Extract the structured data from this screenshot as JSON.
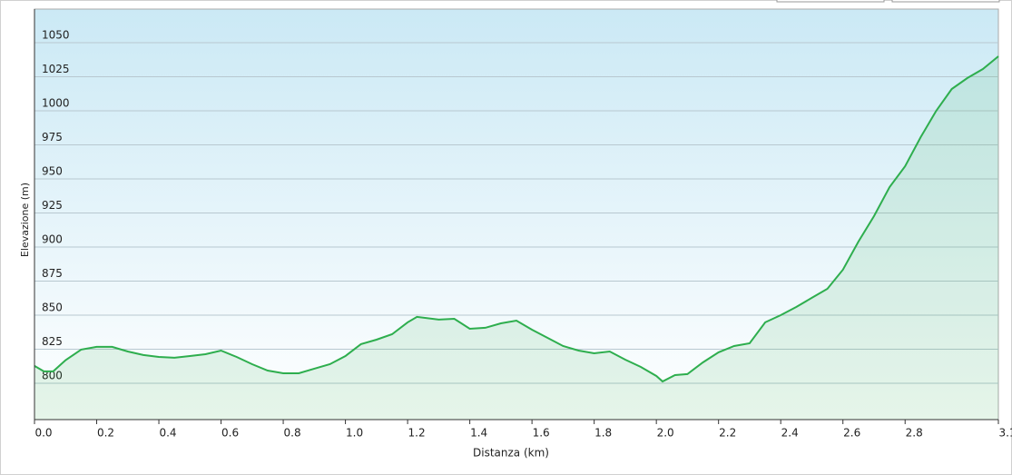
{
  "chart_data": {
    "type": "area",
    "x_label": "Distanza (km)",
    "y_label": "Elevazione (m)",
    "x": [
      0,
      0.03,
      0.06,
      0.1,
      0.15,
      0.2,
      0.25,
      0.3,
      0.35,
      0.4,
      0.45,
      0.5,
      0.55,
      0.6,
      0.65,
      0.7,
      0.75,
      0.8,
      0.85,
      0.9,
      0.95,
      1.0,
      1.05,
      1.1,
      1.15,
      1.2,
      1.23,
      1.3,
      1.35,
      1.4,
      1.45,
      1.5,
      1.55,
      1.6,
      1.65,
      1.7,
      1.75,
      1.8,
      1.85,
      1.9,
      1.95,
      2.0,
      2.02,
      2.06,
      2.1,
      2.15,
      2.2,
      2.25,
      2.3,
      2.35,
      2.4,
      2.45,
      2.5,
      2.55,
      2.6,
      2.65,
      2.7,
      2.75,
      2.8,
      2.85,
      2.9,
      2.95,
      3.0,
      3.05,
      3.1
    ],
    "series": [
      {
        "color": "#2eae4e",
        "values": [
          812.7,
          808.7,
          808.7,
          817,
          824.7,
          826.7,
          826.7,
          823.3,
          820.7,
          819.3,
          818.7,
          820,
          821.3,
          824,
          819.3,
          814,
          809.3,
          807.3,
          807.3,
          810.7,
          814,
          820,
          828.7,
          832,
          836,
          844.7,
          848.7,
          846.7,
          847.3,
          840,
          840.7,
          844,
          846,
          839.3,
          833.3,
          827.3,
          824,
          822,
          823.3,
          817.3,
          812,
          805.3,
          801.3,
          806,
          806.7,
          815.3,
          822.7,
          827.3,
          829.3,
          844.7,
          850,
          856,
          862.7,
          869.3,
          883.3,
          904,
          922.7,
          944,
          959.3,
          980.7,
          1000,
          1016,
          1024,
          1030.7,
          1040
        ]
      }
    ],
    "xlim": [
      0,
      3.1
    ],
    "ylim": [
      773.3,
      1074.7
    ],
    "xticks": [
      {
        "value": 0,
        "label": "0.0"
      },
      0.2,
      0.4,
      0.6,
      0.8,
      {
        "value": 1,
        "label": "1.0"
      },
      1.2,
      1.4,
      1.6,
      1.8,
      {
        "value": 2,
        "label": "2.0"
      },
      2.2,
      2.4,
      2.6,
      2.8,
      3.1
    ],
    "yticks": [
      800,
      825,
      850,
      875,
      900,
      925,
      950,
      975,
      1000,
      1025,
      1050
    ],
    "grid": true
  }
}
